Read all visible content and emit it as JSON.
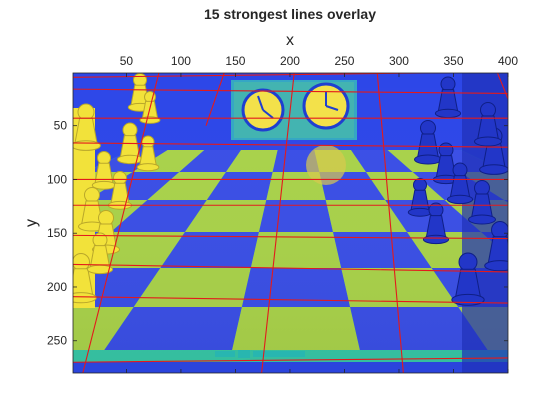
{
  "chart_data": {
    "type": "heatmap",
    "title": "15 strongest lines overlay",
    "xlabel": "x",
    "ylabel": "y",
    "xlim": [
      1,
      400
    ],
    "ylim": [
      1,
      280
    ],
    "x_axis_location": "top",
    "y_direction": "reverse",
    "x_ticks": [
      50,
      100,
      150,
      200,
      250,
      300,
      350,
      400
    ],
    "y_ticks": [
      50,
      100,
      150,
      200,
      250
    ],
    "grid": false,
    "colormap": "parula",
    "overlay_color": "#e31a1c",
    "lines": [
      {
        "x1": 1,
        "y1": 5,
        "x2": 400,
        "y2": 0
      },
      {
        "x1": 1,
        "y1": 16,
        "x2": 400,
        "y2": 20
      },
      {
        "x1": 1,
        "y1": 43,
        "x2": 400,
        "y2": 43
      },
      {
        "x1": 1,
        "y1": 66,
        "x2": 400,
        "y2": 70
      },
      {
        "x1": 1,
        "y1": 100,
        "x2": 400,
        "y2": 100
      },
      {
        "x1": 1,
        "y1": 124,
        "x2": 400,
        "y2": 124
      },
      {
        "x1": 1,
        "y1": 152,
        "x2": 400,
        "y2": 155
      },
      {
        "x1": 1,
        "y1": 179,
        "x2": 400,
        "y2": 186
      },
      {
        "x1": 1,
        "y1": 209,
        "x2": 400,
        "y2": 215
      },
      {
        "x1": 1,
        "y1": 270,
        "x2": 400,
        "y2": 266
      },
      {
        "x1": 80,
        "y1": 0,
        "x2": 10,
        "y2": 280
      },
      {
        "x1": 140,
        "y1": 0,
        "x2": 123,
        "y2": 50
      },
      {
        "x1": 204,
        "y1": 0,
        "x2": 174,
        "y2": 280
      },
      {
        "x1": 280,
        "y1": 0,
        "x2": 304,
        "y2": 280
      },
      {
        "x1": 390,
        "y1": 0,
        "x2": 400,
        "y2": 25
      }
    ]
  }
}
